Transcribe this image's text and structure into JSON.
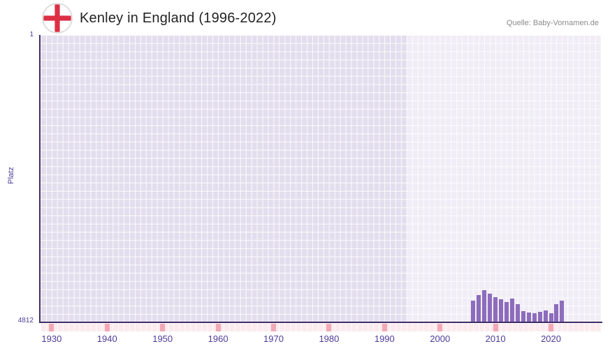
{
  "header": {
    "title": "Kenley in England (1996-2022)",
    "source": "Quelle: Baby-Vornamen.de"
  },
  "chart_data": {
    "type": "bar",
    "title": "Kenley in England (1996-2022)",
    "xlabel": "",
    "ylabel": "Platz",
    "y_axis": {
      "min": 1,
      "max": 4812,
      "inverted": true,
      "top_label": "1",
      "bottom_label": "4812"
    },
    "x_axis": {
      "range": [
        1928,
        2029
      ],
      "ticks": [
        1930,
        1940,
        1950,
        1960,
        1970,
        1980,
        1990,
        2000,
        2010,
        2020
      ]
    },
    "highlight_region": {
      "from": 1994,
      "to": 2029
    },
    "grid": true,
    "legend": "none",
    "series": [
      {
        "name": "Platz",
        "points": [
          {
            "year": 2006,
            "rank": 4460
          },
          {
            "year": 2007,
            "rank": 4366
          },
          {
            "year": 2008,
            "rank": 4284
          },
          {
            "year": 2009,
            "rank": 4343
          },
          {
            "year": 2010,
            "rank": 4402
          },
          {
            "year": 2011,
            "rank": 4437
          },
          {
            "year": 2012,
            "rank": 4484
          },
          {
            "year": 2013,
            "rank": 4425
          },
          {
            "year": 2014,
            "rank": 4519
          },
          {
            "year": 2015,
            "rank": 4636
          },
          {
            "year": 2016,
            "rank": 4660
          },
          {
            "year": 2017,
            "rank": 4671
          },
          {
            "year": 2018,
            "rank": 4648
          },
          {
            "year": 2019,
            "rank": 4625
          },
          {
            "year": 2020,
            "rank": 4671
          },
          {
            "year": 2021,
            "rank": 4519
          },
          {
            "year": 2022,
            "rank": 4460
          }
        ]
      }
    ],
    "colors": {
      "bar": "#8d6cbc",
      "plot_background": "#e3deee",
      "highlight_region": "rgba(255,255,255,0.45)",
      "axis": "#3f2d66",
      "axis_text": "#4c3d99",
      "tick_strip": "#fbeaee",
      "decade_mark": "#f2a9b6",
      "flag_cross": "#dc2f45",
      "title_text": "#232323",
      "source_text": "#8b8b8b"
    }
  }
}
